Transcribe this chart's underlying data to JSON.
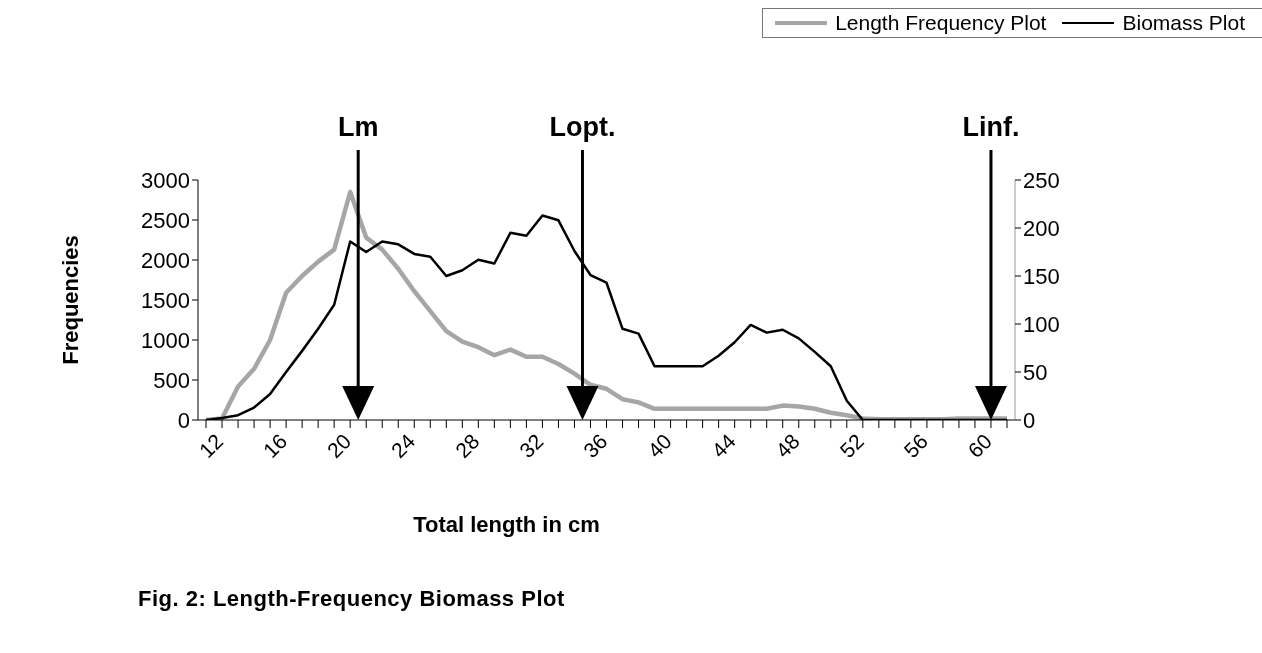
{
  "chart_data": {
    "type": "line",
    "title": "Fig. 2: Length-Frequency Biomass Plot",
    "xlabel": "Total length in cm",
    "ylabel": "Frequencies",
    "x": [
      12,
      13,
      14,
      15,
      16,
      17,
      18,
      19,
      20,
      21,
      22,
      23,
      24,
      25,
      26,
      27,
      28,
      29,
      30,
      31,
      32,
      33,
      34,
      35,
      36,
      37,
      38,
      39,
      40,
      41,
      42,
      43,
      44,
      45,
      46,
      47,
      48,
      49,
      50,
      51,
      52,
      53,
      54,
      55,
      56,
      57,
      58,
      59,
      60,
      61,
      62
    ],
    "series": [
      {
        "name": "Length Frequency Plot",
        "color": "#a6a6a6",
        "values": [
          0,
          20,
          420,
          640,
          1000,
          1590,
          1800,
          1980,
          2130,
          2850,
          2280,
          2130,
          1890,
          1610,
          1360,
          1110,
          980,
          910,
          810,
          880,
          790,
          790,
          700,
          580,
          440,
          390,
          260,
          220,
          140,
          140,
          140,
          140,
          140,
          140,
          140,
          140,
          180,
          170,
          140,
          90,
          60,
          20,
          10,
          10,
          10,
          10,
          10,
          20,
          20,
          20,
          20
        ]
      },
      {
        "name": "Biomass Plot",
        "color": "#000000",
        "axis": "y2",
        "values": [
          0,
          2,
          5,
          13,
          27,
          50,
          72,
          95,
          120,
          186,
          175,
          186,
          183,
          173,
          170,
          150,
          156,
          167,
          163,
          195,
          192,
          213,
          208,
          176,
          151,
          143,
          95,
          90,
          56,
          56,
          56,
          56,
          67,
          81,
          99,
          91,
          94,
          85,
          71,
          56,
          20,
          0,
          0,
          0,
          0,
          0,
          0,
          0,
          0,
          0,
          0
        ]
      }
    ],
    "xlim": [
      11.5,
      62.5
    ],
    "xticks": [
      12,
      {
        "value": 13,
        "label": null
      },
      {
        "value": 14,
        "label": null
      },
      {
        "value": 15,
        "label": null
      },
      16,
      {
        "value": 17,
        "label": null
      },
      {
        "value": 18,
        "label": null
      },
      {
        "value": 19,
        "label": null
      },
      20,
      {
        "value": 21,
        "label": null
      },
      {
        "value": 22,
        "label": null
      },
      {
        "value": 23,
        "label": null
      },
      24,
      {
        "value": 25,
        "label": null
      },
      {
        "value": 26,
        "label": null
      },
      {
        "value": 27,
        "label": null
      },
      28,
      {
        "value": 29,
        "label": null
      },
      {
        "value": 30,
        "label": null
      },
      {
        "value": 31,
        "label": null
      },
      32,
      {
        "value": 33,
        "label": null
      },
      {
        "value": 34,
        "label": null
      },
      {
        "value": 35,
        "label": null
      },
      36,
      {
        "value": 37,
        "label": null
      },
      {
        "value": 38,
        "label": null
      },
      {
        "value": 39,
        "label": null
      },
      40,
      {
        "value": 41,
        "label": null
      },
      {
        "value": 42,
        "label": null
      },
      {
        "value": 43,
        "label": null
      },
      44,
      {
        "value": 45,
        "label": null
      },
      {
        "value": 46,
        "label": null
      },
      {
        "value": 47,
        "label": null
      },
      48,
      {
        "value": 49,
        "label": null
      },
      {
        "value": 50,
        "label": null
      },
      {
        "value": 51,
        "label": null
      },
      52,
      {
        "value": 53,
        "label": null
      },
      {
        "value": 54,
        "label": null
      },
      {
        "value": 55,
        "label": null
      },
      56,
      {
        "value": 57,
        "label": null
      },
      {
        "value": 58,
        "label": null
      },
      {
        "value": 59,
        "label": null
      },
      60,
      {
        "value": 61,
        "label": null
      },
      {
        "value": 62,
        "label": null
      }
    ],
    "ylim": [
      0,
      3000
    ],
    "yticks": [
      0,
      500,
      1000,
      1500,
      2000,
      2500,
      3000
    ],
    "y2lim": [
      0,
      250
    ],
    "y2ticks": [
      0,
      50,
      100,
      150,
      200,
      250
    ],
    "ref_lines": [
      {
        "axis": "x",
        "value": 21.5,
        "label": "Lm",
        "color": "#000000"
      },
      {
        "axis": "x",
        "value": 35.5,
        "label": "Lopt.",
        "color": "#000000"
      },
      {
        "axis": "x",
        "value": 61,
        "label": "Linf.",
        "color": "#000000"
      }
    ],
    "legend": "top right",
    "marker": "none",
    "line_style": "solid"
  }
}
